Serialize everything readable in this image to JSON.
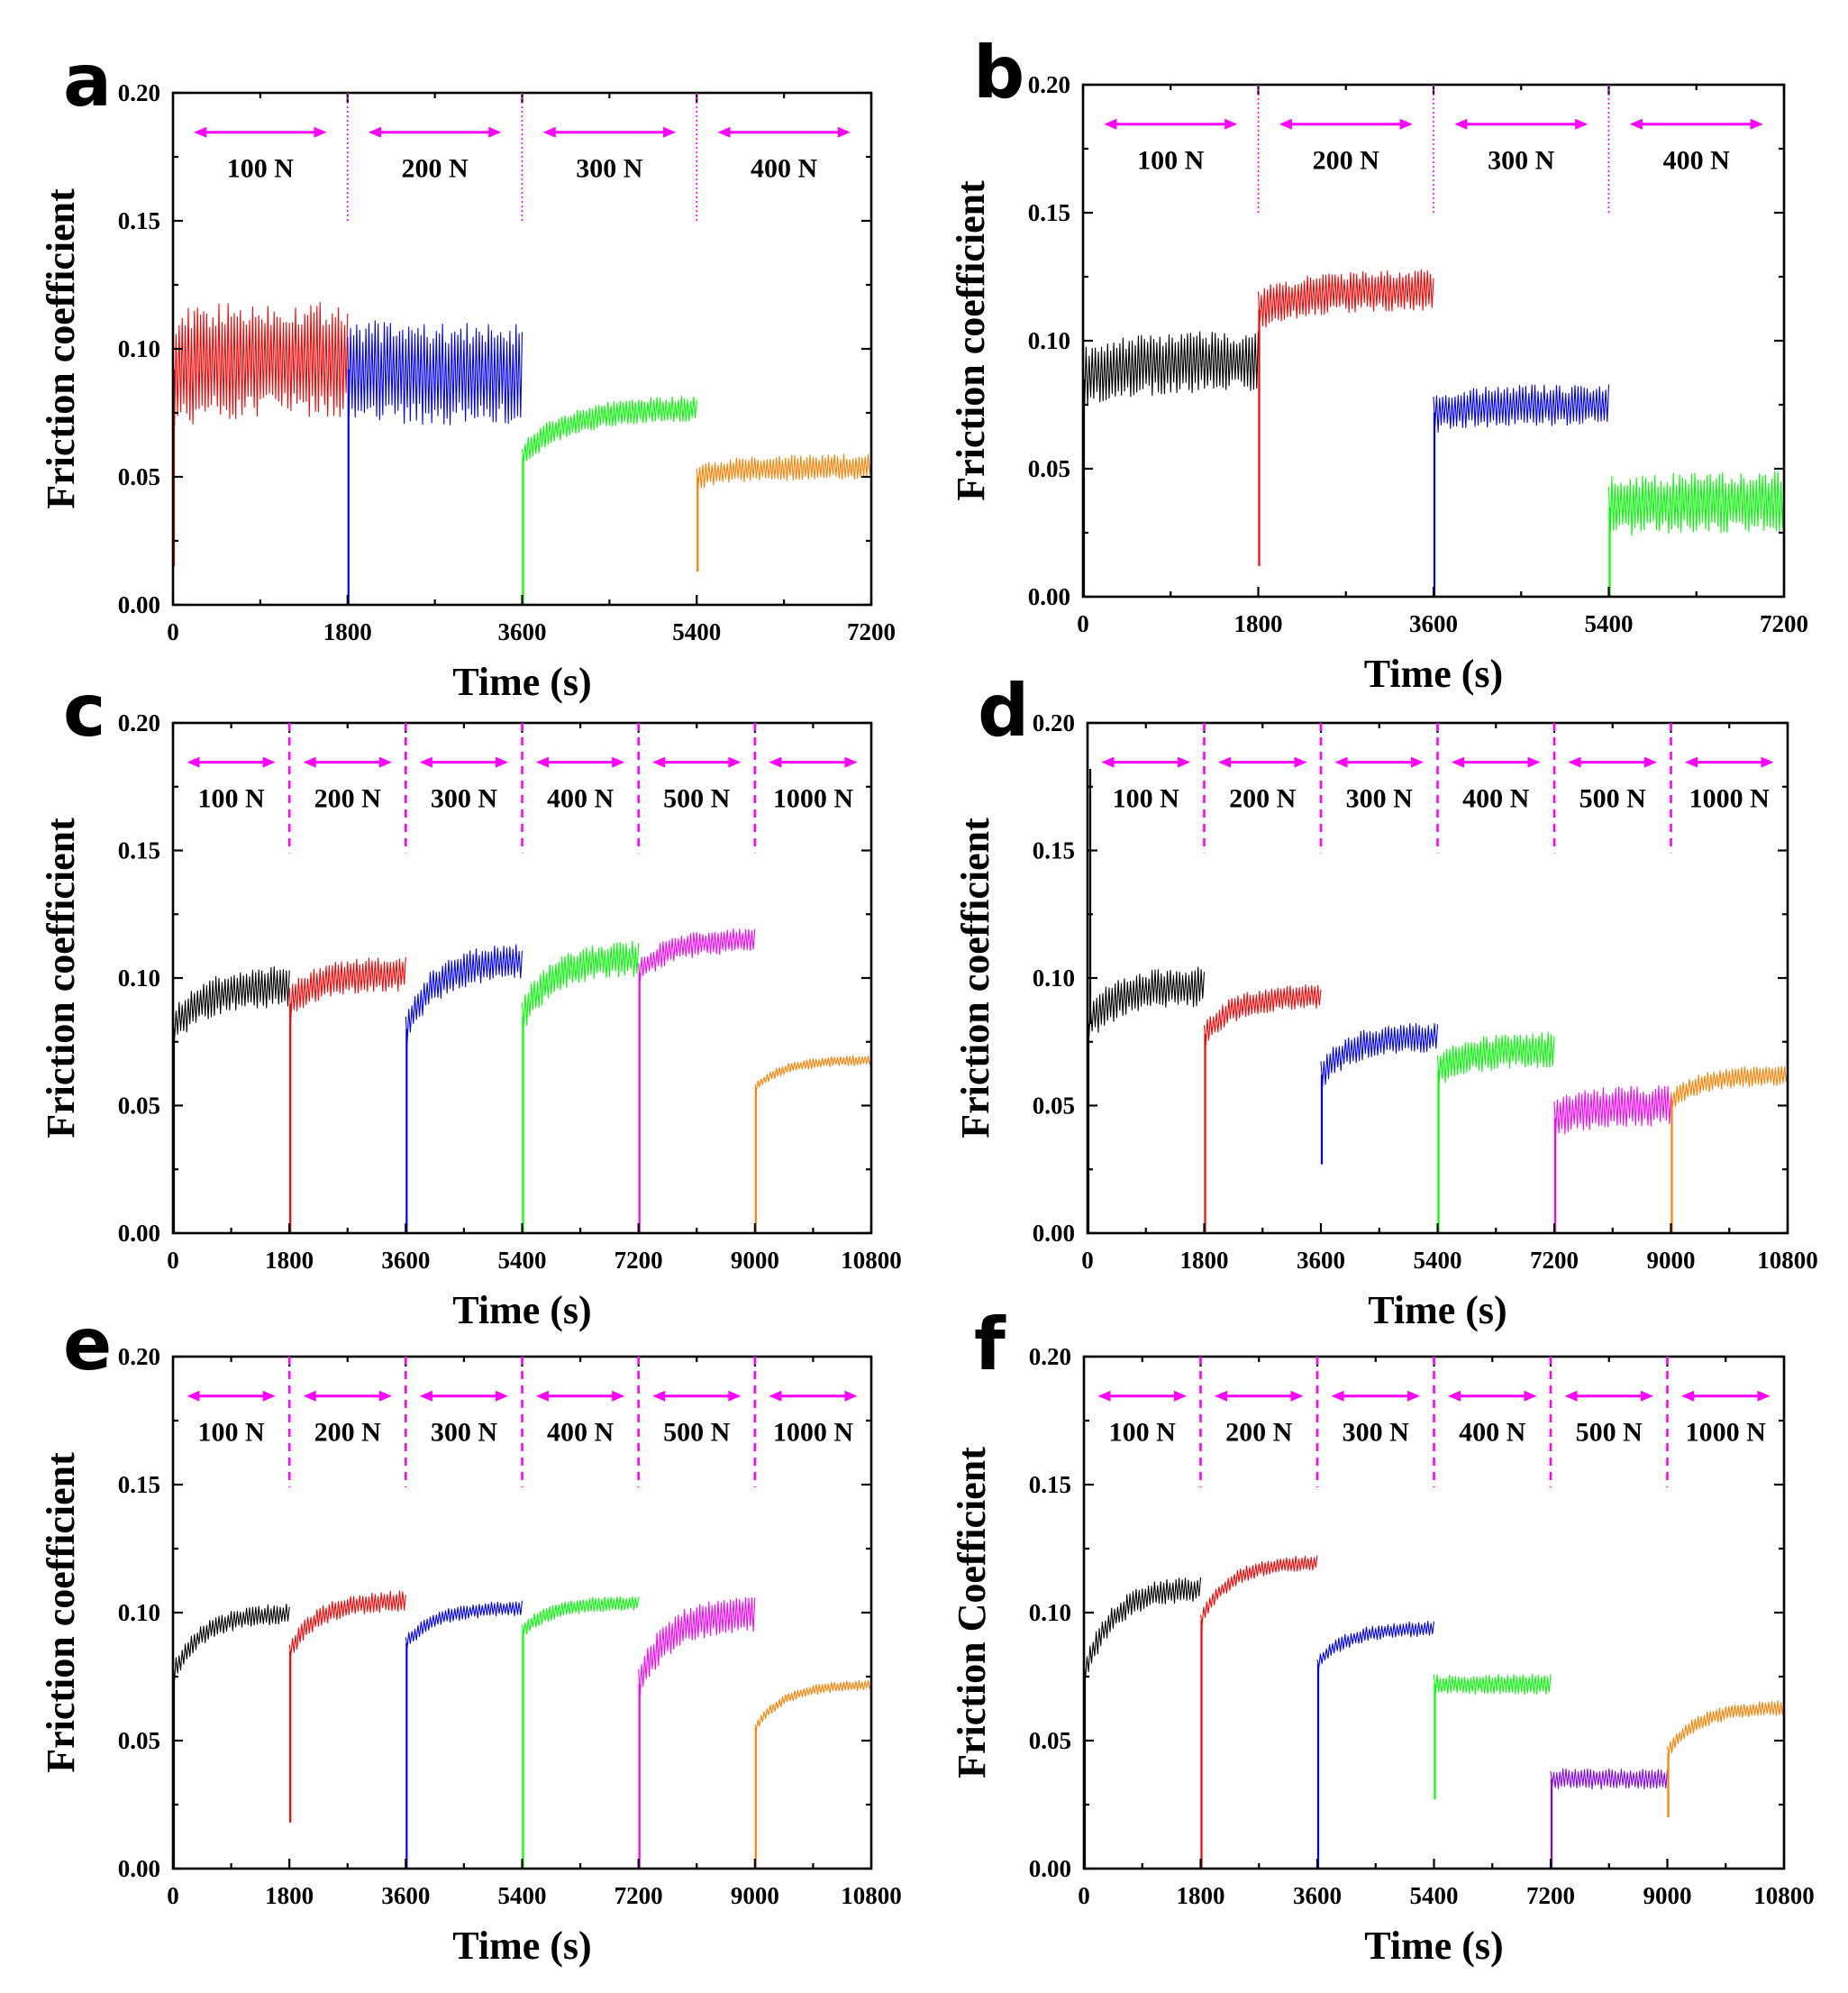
{
  "figure": {
    "panels": [
      "a",
      "b",
      "c",
      "d",
      "e",
      "f"
    ]
  },
  "chart_data": [
    {
      "panel": "a",
      "type": "line",
      "xlabel": "Time (s)",
      "ylabel": "Friction coefficient",
      "xlim": [
        0,
        7200
      ],
      "ylim": [
        0,
        0.2
      ],
      "xticks": [
        "0",
        "1800",
        "3600",
        "5400",
        "7200"
      ],
      "yticks": [
        "0.00",
        "0.05",
        "0.10",
        "0.15",
        "0.20"
      ],
      "divider_style": "dotted",
      "load_labels": [
        "100 N",
        "200 N",
        "300 N",
        "400 N"
      ],
      "series": [
        {
          "name": "100 N",
          "color": "#ff0000",
          "x_start": 0,
          "x_end": 1800,
          "start_mean": 0.092,
          "end_mean": 0.096,
          "amplitude": 0.023,
          "dip": 0.015
        },
        {
          "name": "200 N",
          "color": "#0000ff",
          "x_start": 1800,
          "x_end": 3600,
          "start_mean": 0.092,
          "end_mean": 0.09,
          "amplitude": 0.02,
          "dip": 0.0
        },
        {
          "name": "300 N",
          "color": "#00ff00",
          "x_start": 3600,
          "x_end": 5400,
          "start_mean": 0.058,
          "end_mean": 0.077,
          "amplitude": 0.005,
          "dip": 0.0
        },
        {
          "name": "400 N",
          "color": "#ff8000",
          "x_start": 5400,
          "x_end": 7200,
          "start_mean": 0.05,
          "end_mean": 0.054,
          "amplitude": 0.005,
          "dip": 0.013
        }
      ]
    },
    {
      "panel": "b",
      "type": "line",
      "xlabel": "Time (s)",
      "ylabel": "Friction coefficient",
      "xlim": [
        0,
        7200
      ],
      "ylim": [
        0,
        0.2
      ],
      "xticks": [
        "0",
        "1800",
        "3600",
        "5400",
        "7200"
      ],
      "yticks": [
        "0.00",
        "0.05",
        "0.10",
        "0.15",
        "0.20"
      ],
      "divider_style": "dotted",
      "load_labels": [
        "100 N",
        "200 N",
        "300 N",
        "400 N"
      ],
      "series": [
        {
          "name": "100 N",
          "color": "#000000",
          "x_start": 0,
          "x_end": 1800,
          "start_mean": 0.085,
          "end_mean": 0.092,
          "amplitude": 0.012,
          "dip": 0.0
        },
        {
          "name": "200 N",
          "color": "#ff0000",
          "x_start": 1800,
          "x_end": 3600,
          "start_mean": 0.112,
          "end_mean": 0.12,
          "amplitude": 0.008,
          "dip": 0.012
        },
        {
          "name": "300 N",
          "color": "#0000ff",
          "x_start": 3600,
          "x_end": 5400,
          "start_mean": 0.072,
          "end_mean": 0.075,
          "amplitude": 0.008,
          "dip": 0.0
        },
        {
          "name": "400 N",
          "color": "#00ff00",
          "x_start": 5400,
          "x_end": 7200,
          "start_mean": 0.035,
          "end_mean": 0.037,
          "amplitude": 0.012,
          "dip": 0.0
        }
      ]
    },
    {
      "panel": "c",
      "type": "line",
      "xlabel": "Time (s)",
      "ylabel": "Friction coefficient",
      "xlim": [
        0,
        10800
      ],
      "ylim": [
        0,
        0.2
      ],
      "xticks": [
        "0",
        "1800",
        "3600",
        "5400",
        "7200",
        "9000",
        "10800"
      ],
      "yticks": [
        "0.00",
        "0.05",
        "0.10",
        "0.15",
        "0.20"
      ],
      "divider_style": "dashed",
      "load_labels": [
        "100 N",
        "200 N",
        "300 N",
        "400 N",
        "500 N",
        "1000 N"
      ],
      "series": [
        {
          "name": "100 N",
          "color": "#000000",
          "x_start": 0,
          "x_end": 1800,
          "start_mean": 0.08,
          "end_mean": 0.097,
          "amplitude": 0.008,
          "dip": 0.0
        },
        {
          "name": "200 N",
          "color": "#ff0000",
          "x_start": 1800,
          "x_end": 3600,
          "start_mean": 0.09,
          "end_mean": 0.102,
          "amplitude": 0.007,
          "dip": 0.0
        },
        {
          "name": "300 N",
          "color": "#0000ff",
          "x_start": 3600,
          "x_end": 5400,
          "start_mean": 0.08,
          "end_mean": 0.107,
          "amplitude": 0.007,
          "dip": 0.0
        },
        {
          "name": "400 N",
          "color": "#00ff00",
          "x_start": 5400,
          "x_end": 7200,
          "start_mean": 0.085,
          "end_mean": 0.108,
          "amplitude": 0.007,
          "dip": 0.0
        },
        {
          "name": "500 N",
          "color": "#ff00ff",
          "x_start": 7200,
          "x_end": 9000,
          "start_mean": 0.102,
          "end_mean": 0.115,
          "amplitude": 0.005,
          "dip": 0.0
        },
        {
          "name": "1000 N",
          "color": "#ff8000",
          "x_start": 9000,
          "x_end": 10800,
          "start_mean": 0.057,
          "end_mean": 0.068,
          "amplitude": 0.002,
          "dip": 0.0
        }
      ]
    },
    {
      "panel": "d",
      "type": "line",
      "xlabel": "Time (s)",
      "ylabel": "Friction coefficient",
      "xlim": [
        0,
        10800
      ],
      "ylim": [
        0,
        0.2
      ],
      "xticks": [
        "0",
        "1800",
        "3600",
        "5400",
        "7200",
        "9000",
        "10800"
      ],
      "yticks": [
        "0.00",
        "0.05",
        "0.10",
        "0.15",
        "0.20"
      ],
      "divider_style": "dashed",
      "load_labels": [
        "100 N",
        "200 N",
        "300 N",
        "400 N",
        "500 N",
        "1000 N"
      ],
      "series": [
        {
          "name": "100 N",
          "color": "#000000",
          "x_start": 0,
          "x_end": 1800,
          "start_mean": 0.082,
          "end_mean": 0.097,
          "amplitude": 0.008,
          "dip": 0.0,
          "spike": 0.182
        },
        {
          "name": "200 N",
          "color": "#ff0000",
          "x_start": 1800,
          "x_end": 3600,
          "start_mean": 0.078,
          "end_mean": 0.093,
          "amplitude": 0.005,
          "dip": 0.0
        },
        {
          "name": "300 N",
          "color": "#0000ff",
          "x_start": 3600,
          "x_end": 5400,
          "start_mean": 0.062,
          "end_mean": 0.077,
          "amplitude": 0.006,
          "dip": 0.027
        },
        {
          "name": "400 N",
          "color": "#00ff00",
          "x_start": 5400,
          "x_end": 7200,
          "start_mean": 0.064,
          "end_mean": 0.072,
          "amplitude": 0.007,
          "dip": 0.0
        },
        {
          "name": "500 N",
          "color": "#ff00ff",
          "x_start": 7200,
          "x_end": 9000,
          "start_mean": 0.045,
          "end_mean": 0.05,
          "amplitude": 0.008,
          "dip": 0.0
        },
        {
          "name": "1000 N",
          "color": "#ff8000",
          "x_start": 9000,
          "x_end": 10800,
          "start_mean": 0.052,
          "end_mean": 0.062,
          "amplitude": 0.004,
          "dip": 0.0
        }
      ]
    },
    {
      "panel": "e",
      "type": "line",
      "xlabel": "Time (s)",
      "ylabel": "Friction coefficient",
      "xlim": [
        0,
        10800
      ],
      "ylim": [
        0,
        0.2
      ],
      "xticks": [
        "0",
        "1800",
        "3600",
        "5400",
        "7200",
        "9000",
        "10800"
      ],
      "yticks": [
        "0.00",
        "0.05",
        "0.10",
        "0.15",
        "0.20"
      ],
      "divider_style": "dashed",
      "load_labels": [
        "100 N",
        "200 N",
        "300 N",
        "400 N",
        "500 N",
        "1000 N"
      ],
      "series": [
        {
          "name": "100 N",
          "color": "#000000",
          "x_start": 0,
          "x_end": 1800,
          "start_mean": 0.076,
          "end_mean": 0.1,
          "amplitude": 0.004,
          "dip": 0.0
        },
        {
          "name": "200 N",
          "color": "#ff0000",
          "x_start": 1800,
          "x_end": 3600,
          "start_mean": 0.085,
          "end_mean": 0.105,
          "amplitude": 0.004,
          "dip": 0.018
        },
        {
          "name": "300 N",
          "color": "#0000ff",
          "x_start": 3600,
          "x_end": 5400,
          "start_mean": 0.088,
          "end_mean": 0.102,
          "amplitude": 0.003,
          "dip": 0.0
        },
        {
          "name": "400 N",
          "color": "#00ff00",
          "x_start": 5400,
          "x_end": 7200,
          "start_mean": 0.093,
          "end_mean": 0.104,
          "amplitude": 0.003,
          "dip": 0.0
        },
        {
          "name": "500 N",
          "color": "#ff00ff",
          "x_start": 7200,
          "x_end": 9000,
          "start_mean": 0.072,
          "end_mean": 0.1,
          "amplitude": 0.007,
          "dip": 0.0
        },
        {
          "name": "1000 N",
          "color": "#ff8000",
          "x_start": 9000,
          "x_end": 10800,
          "start_mean": 0.055,
          "end_mean": 0.072,
          "amplitude": 0.002,
          "dip": 0.0
        }
      ]
    },
    {
      "panel": "f",
      "type": "line",
      "xlabel": "Time (s)",
      "ylabel": "Friction Coefficient",
      "xlim": [
        0,
        10800
      ],
      "ylim": [
        0,
        0.2
      ],
      "xticks": [
        "0",
        "1800",
        "3600",
        "5400",
        "7200",
        "9000",
        "10800"
      ],
      "yticks": [
        "0.00",
        "0.05",
        "0.10",
        "0.15",
        "0.20"
      ],
      "divider_style": "dashed",
      "load_labels": [
        "100 N",
        "200 N",
        "300 N",
        "400 N",
        "500 N",
        "1000 N"
      ],
      "series": [
        {
          "name": "100 N",
          "color": "#000000",
          "x_start": 0,
          "x_end": 1800,
          "start_mean": 0.076,
          "end_mean": 0.11,
          "amplitude": 0.005,
          "dip": 0.0
        },
        {
          "name": "200 N",
          "color": "#ff0000",
          "x_start": 1800,
          "x_end": 3600,
          "start_mean": 0.097,
          "end_mean": 0.12,
          "amplitude": 0.003,
          "dip": 0.0
        },
        {
          "name": "300 N",
          "color": "#0000ff",
          "x_start": 3600,
          "x_end": 5400,
          "start_mean": 0.08,
          "end_mean": 0.094,
          "amplitude": 0.003,
          "dip": 0.0
        },
        {
          "name": "400 N",
          "color": "#00ff00",
          "x_start": 5400,
          "x_end": 7200,
          "start_mean": 0.072,
          "end_mean": 0.072,
          "amplitude": 0.004,
          "dip": 0.027
        },
        {
          "name": "500 N",
          "color": "#8000ff",
          "x_start": 7200,
          "x_end": 9000,
          "start_mean": 0.035,
          "end_mean": 0.035,
          "amplitude": 0.004,
          "dip": 0.0
        },
        {
          "name": "1000 N",
          "color": "#ff8000",
          "x_start": 9000,
          "x_end": 10800,
          "start_mean": 0.045,
          "end_mean": 0.063,
          "amplitude": 0.003,
          "dip": 0.02
        }
      ]
    }
  ]
}
